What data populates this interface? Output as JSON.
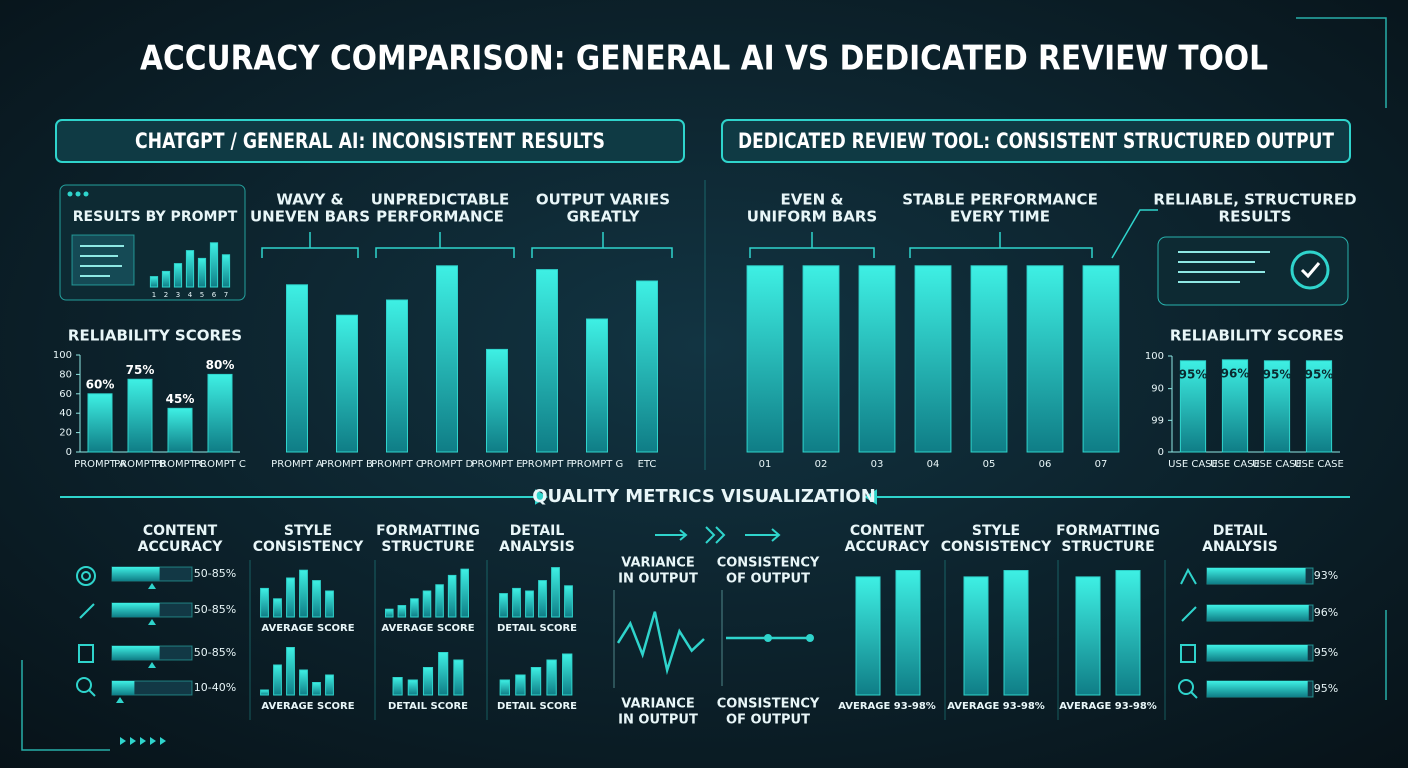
{
  "title": "ACCURACY COMPARISON: GENERAL AI VS DEDICATED REVIEW TOOL",
  "left_panel": {
    "header": "CHATGPT / GENERAL AI: INCONSISTENT RESULTS",
    "card_title": "RESULTS BY PROMPT",
    "annotations": [
      [
        "WAVY &",
        "UNEVEN BARS"
      ],
      [
        "UNPREDICTABLE",
        "PERFORMANCE"
      ],
      [
        "OUTPUT VARIES",
        "GREATLY"
      ]
    ]
  },
  "right_panel": {
    "header": "DEDICATED REVIEW TOOL: CONSISTENT STRUCTURED OUTPUT",
    "annotations": [
      [
        "EVEN &",
        "UNIFORM BARS"
      ],
      [
        "STABLE PERFORMANCE",
        "EVERY TIME"
      ],
      [
        "RELIABLE, STRUCTURED",
        "RESULTS"
      ]
    ]
  },
  "section_title": "QUALITY METRICS VISUALIZATION",
  "metrics_left": {
    "headers": [
      [
        "CONTENT",
        "ACCURACY"
      ],
      [
        "STYLE",
        "CONSISTENCY"
      ],
      [
        "FORMATTING",
        "STRUCTURE"
      ],
      [
        "DETAIL",
        "ANALYSIS"
      ]
    ],
    "ranges": [
      {
        "low": 50,
        "high": 85,
        "label": "50-85%"
      },
      {
        "low": 50,
        "high": 85,
        "label": "50-85%"
      },
      {
        "low": 50,
        "high": 85,
        "label": "50-85%"
      },
      {
        "low": 10,
        "high": 40,
        "label": "10-40%"
      }
    ]
  },
  "metrics_right": {
    "headers": [
      [
        "CONTENT",
        "ACCURACY"
      ],
      [
        "STYLE",
        "CONSISTENCY"
      ],
      [
        "FORMATTING",
        "STRUCTURE"
      ],
      [
        "DETAIL",
        "ANALYSIS"
      ]
    ],
    "values": [
      93,
      96,
      95,
      95
    ],
    "value_labels": [
      "93%",
      "96%",
      "95%",
      "95%"
    ]
  },
  "chart_data": [
    {
      "type": "bar",
      "categories": [
        "1",
        "2",
        "3",
        "4",
        "5",
        "6",
        "7"
      ],
      "values": [
        20,
        30,
        45,
        70,
        55,
        85,
        62
      ],
      "color": "#2fd4cc"
    },
    {
      "type": "bar",
      "title": "RELIABILITY SCORES",
      "categories": [
        "PROMPT A",
        "PROMPT B",
        "PROMPT C",
        "PROMPT C"
      ],
      "values": [
        60,
        75,
        45,
        80
      ],
      "value_labels": [
        "60%",
        "75%",
        "45%",
        "80%"
      ],
      "ylim": [
        0,
        100
      ],
      "yticks": [
        0,
        20,
        40,
        60,
        80,
        100
      ],
      "color": "#2fd4cc"
    },
    {
      "type": "bar",
      "categories": [
        "PROMPT A",
        "PROMPT B",
        "PROMPT C",
        "PROMPT D",
        "PROMPT E",
        "PROMPT F",
        "PROMPT G",
        "ETC"
      ],
      "values": [
        88,
        72,
        80,
        98,
        54,
        96,
        70,
        90
      ],
      "color": "#2fd4cc"
    },
    {
      "type": "bar",
      "categories": [
        "01",
        "02",
        "03",
        "04",
        "05",
        "06",
        "07"
      ],
      "values": [
        98,
        98,
        98,
        98,
        98,
        98,
        98
      ],
      "color": "#2fd4cc"
    },
    {
      "type": "bar",
      "title": "RELIABILITY SCORES",
      "categories": [
        "USE CASE",
        "USE CASE",
        "USE CASE",
        "USE CASE"
      ],
      "values": [
        95,
        96,
        95,
        95
      ],
      "value_labels": [
        "95%",
        "96%",
        "95%",
        "95%"
      ],
      "ylim": [
        0,
        100
      ],
      "yticks": [
        0,
        {
          "value": 33,
          "label": "99"
        },
        {
          "value": 66,
          "label": "90"
        },
        100
      ],
      "color": "#2fd4cc"
    },
    {
      "type": "bar",
      "title": "AVERAGE SCORE",
      "values": [
        55,
        35,
        75,
        90,
        70,
        50
      ],
      "color": "#2fd4cc"
    },
    {
      "type": "bar",
      "title": "AVERAGE SCORE",
      "values": [
        15,
        22,
        35,
        50,
        62,
        80,
        92
      ],
      "color": "#2fd4cc"
    },
    {
      "type": "bar",
      "title": "DETAIL SCORE",
      "values": [
        45,
        55,
        50,
        70,
        95,
        60
      ],
      "color": "#2fd4cc"
    },
    {
      "type": "bar",
      "title": "AVERAGE SCORE",
      "values": [
        10,
        60,
        95,
        50,
        25,
        40
      ],
      "color": "#2fd4cc"
    },
    {
      "type": "bar",
      "title": "DETAIL SCORE",
      "values": [
        35,
        30,
        55,
        85,
        70
      ],
      "color": "#2fd4cc"
    },
    {
      "type": "bar",
      "title": "DETAIL SCORE",
      "values": [
        30,
        40,
        55,
        70,
        82
      ],
      "color": "#2fd4cc"
    },
    {
      "type": "line",
      "title": [
        "VARIANCE",
        "IN OUTPUT"
      ],
      "caption": [
        "VARIANCE",
        "IN OUTPUT"
      ],
      "values": [
        45,
        70,
        30,
        85,
        10,
        60,
        35,
        50
      ],
      "color": "#2fd4cc"
    },
    {
      "type": "line",
      "title": [
        "CONSISTENCY",
        "OF OUTPUT"
      ],
      "caption": [
        "CONSISTENCY",
        "OF OUTPUT"
      ],
      "values": [
        50,
        50,
        50
      ],
      "color": "#2fd4cc"
    },
    {
      "type": "bar",
      "title": "AVERAGE 93-98%",
      "values": [
        93,
        98
      ],
      "color": "#2fd4cc"
    },
    {
      "type": "bar",
      "title": "AVERAGE 93-98%",
      "values": [
        93,
        98
      ],
      "color": "#2fd4cc"
    },
    {
      "type": "bar",
      "title": "AVERAGE 93-98%",
      "values": [
        93,
        98
      ],
      "color": "#2fd4cc"
    }
  ]
}
